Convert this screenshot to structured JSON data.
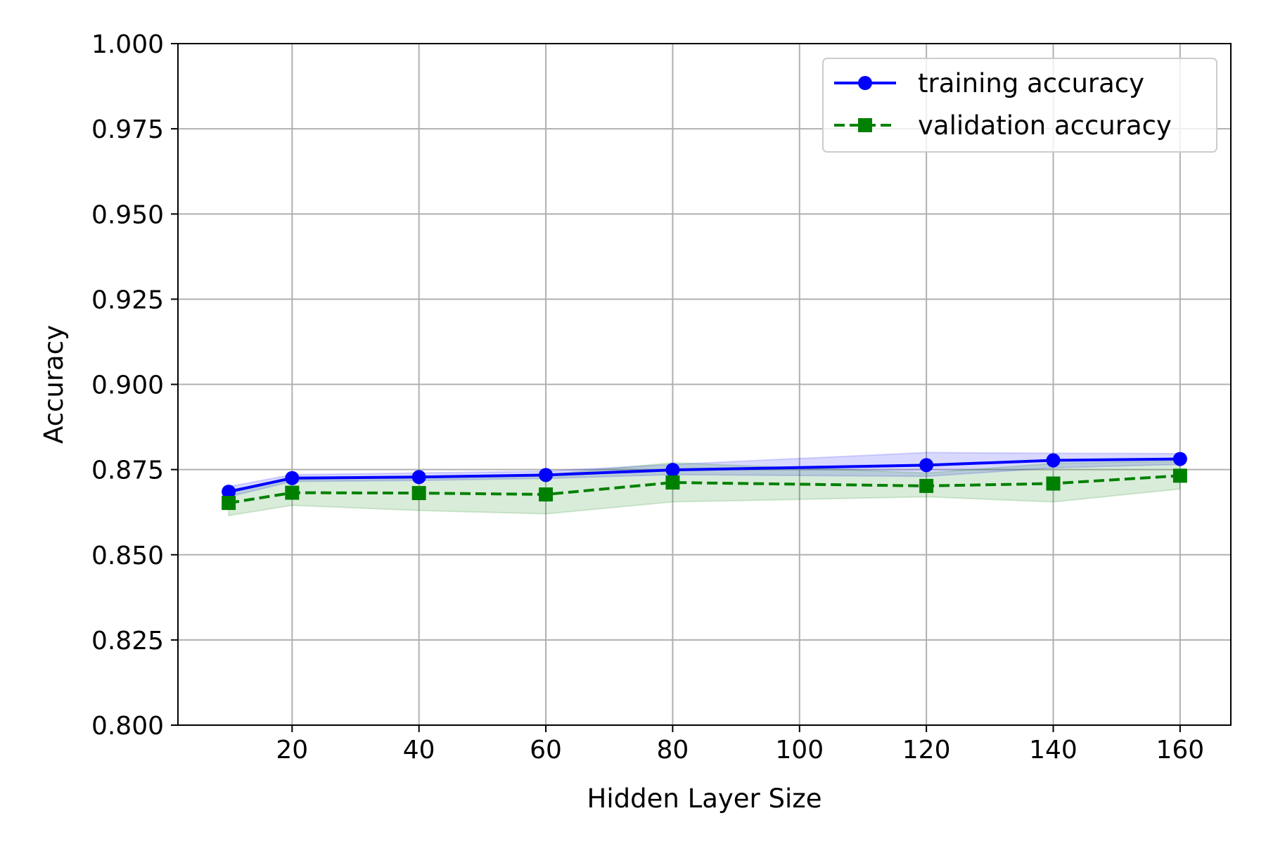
{
  "chart_data": {
    "type": "line",
    "xlabel": "Hidden Layer Size",
    "ylabel": "Accuracy",
    "xlim": [
      2,
      168
    ],
    "ylim": [
      0.8,
      1.0
    ],
    "x_ticks": [
      20,
      40,
      60,
      80,
      100,
      120,
      140,
      160
    ],
    "x_tick_labels": [
      "20",
      "40",
      "60",
      "80",
      "100",
      "120",
      "140",
      "160"
    ],
    "y_ticks": [
      0.8,
      0.825,
      0.85,
      0.875,
      0.9,
      0.925,
      0.95,
      0.975,
      1.0
    ],
    "y_tick_labels": [
      "0.800",
      "0.825",
      "0.850",
      "0.875",
      "0.900",
      "0.925",
      "0.950",
      "0.975",
      "1.000"
    ],
    "grid": true,
    "legend_position": "top-right",
    "x": [
      10,
      20,
      40,
      60,
      80,
      120,
      140,
      160
    ],
    "series": [
      {
        "name": "training accuracy",
        "color": "#0000ff",
        "line_style": "solid",
        "marker": "circle",
        "values": [
          0.8685,
          0.8725,
          0.8728,
          0.8734,
          0.8749,
          0.8763,
          0.8777,
          0.8781
        ],
        "band_lower": [
          0.867,
          0.8715,
          0.8718,
          0.8724,
          0.8735,
          0.873,
          0.8755,
          0.8765
        ],
        "band_upper": [
          0.87,
          0.8735,
          0.874,
          0.8745,
          0.8765,
          0.88,
          0.8798,
          0.8797
        ],
        "band_color": "#0000ff"
      },
      {
        "name": "validation accuracy",
        "color": "#008000",
        "line_style": "dashed",
        "marker": "square",
        "values": [
          0.8652,
          0.8682,
          0.8681,
          0.8677,
          0.8712,
          0.8702,
          0.8709,
          0.8732
        ],
        "band_lower": [
          0.8615,
          0.8645,
          0.863,
          0.862,
          0.8655,
          0.867,
          0.8655,
          0.8693
        ],
        "band_upper": [
          0.869,
          0.872,
          0.873,
          0.8735,
          0.877,
          0.874,
          0.8768,
          0.8775
        ],
        "band_color": "#008000"
      }
    ]
  }
}
